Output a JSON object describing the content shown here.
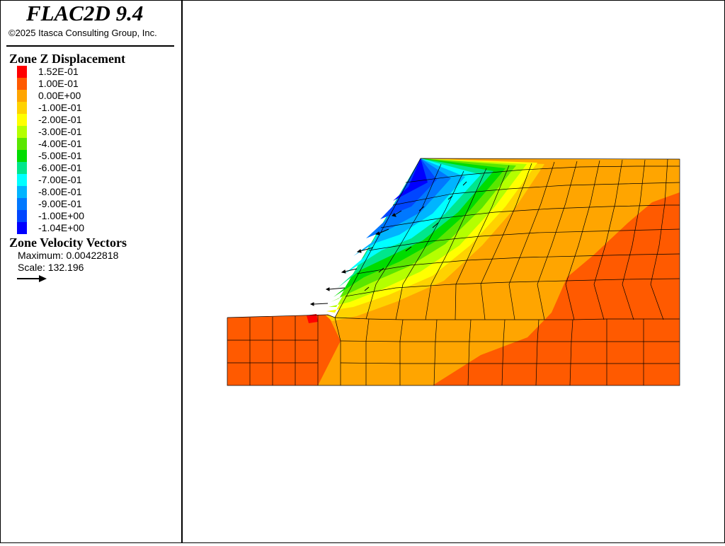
{
  "app": {
    "title": "FLAC2D 9.4",
    "copyright": "©2025 Itasca Consulting Group, Inc."
  },
  "legend": {
    "displacement_title": "Zone Z Displacement",
    "items": [
      {
        "label": "1.52E-01",
        "color": "#ff0000"
      },
      {
        "label": "1.00E-01",
        "color": "#ff5a00"
      },
      {
        "label": "0.00E+00",
        "color": "#ffa500"
      },
      {
        "label": "-1.00E-01",
        "color": "#ffd200"
      },
      {
        "label": "-2.00E-01",
        "color": "#ffff00"
      },
      {
        "label": "-3.00E-01",
        "color": "#b4ff00"
      },
      {
        "label": "-4.00E-01",
        "color": "#5ae600"
      },
      {
        "label": "-5.00E-01",
        "color": "#00dc00"
      },
      {
        "label": "-6.00E-01",
        "color": "#00e68c"
      },
      {
        "label": "-7.00E-01",
        "color": "#00ffff"
      },
      {
        "label": "-8.00E-01",
        "color": "#00b4ff"
      },
      {
        "label": "-9.00E-01",
        "color": "#0078ff"
      },
      {
        "label": "-1.00E+00",
        "color": "#0046ff"
      },
      {
        "label": "-1.04E+00",
        "color": "#0000ff"
      }
    ],
    "velocity_title": "Zone Velocity Vectors",
    "maximum": "Maximum: 0.00422818",
    "scale": "Scale: 132.196"
  },
  "colors": {
    "zone_dark_orange": "#ff5a00",
    "zone_orange": "#ffa500",
    "zone_red": "#ff0000",
    "mesh_line": "#000000"
  }
}
